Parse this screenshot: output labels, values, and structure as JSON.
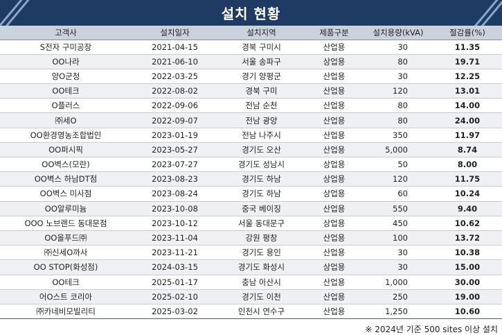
{
  "title": "설치 현황",
  "table": {
    "headers": [
      "고객사",
      "설치일자",
      "설치지역",
      "제품구분",
      "설치용량(kVA)",
      "절감률(%)"
    ],
    "rows": [
      [
        "S전자 구미공장",
        "2021-04-15",
        "경북 구미시",
        "산업용",
        "30",
        "11.35"
      ],
      [
        "OO나라",
        "2021-06-10",
        "서울 송파구",
        "상업용",
        "80",
        "19.71"
      ],
      [
        "양O군청",
        "2022-03-25",
        "경기 양평군",
        "산업용",
        "30",
        "12.25"
      ],
      [
        "OO테크",
        "2022-08-02",
        "경북 구미",
        "산업용",
        "120",
        "13.01"
      ],
      [
        "O플러스",
        "2022-09-06",
        "전남 순천",
        "산업용",
        "80",
        "14.00"
      ],
      [
        "㈜세O",
        "2022-09-07",
        "전남 광양",
        "산업용",
        "80",
        "24.00"
      ],
      [
        "OO환경영농조합법인",
        "2023-01-19",
        "전남 나주시",
        "산업용",
        "350",
        "11.97"
      ],
      [
        "OO퍼시픽",
        "2023-05-27",
        "경기도 오산",
        "산업용",
        "5,000",
        "8.74"
      ],
      [
        "OO벽스(모란)",
        "2023-07-27",
        "경기도 성남시",
        "상업용",
        "50",
        "8.00"
      ],
      [
        "OO벽스 하남DT점",
        "2023-08-23",
        "경기도 하남",
        "상업용",
        "120",
        "11.75"
      ],
      [
        "OO벽스 미사점",
        "2023-08-24",
        "경기도 하남",
        "상업용",
        "60",
        "10.24"
      ],
      [
        "OO알루미늄",
        "2023-10-08",
        "중국 베이징",
        "산업용",
        "550",
        "9.40"
      ],
      [
        "OOO 노브랜드 동대문점",
        "2023-10-12",
        "서울 동대문구",
        "상업용",
        "450",
        "10.62"
      ],
      [
        "OO올푸드㈜",
        "2023-11-04",
        "강원 평창",
        "산업용",
        "100",
        "13.72"
      ],
      [
        "㈜신세O까사",
        "2023-11-21",
        "경기도 용인",
        "산업용",
        "30",
        "10.38"
      ],
      [
        "OO STOP(화성점)",
        "2024-03-15",
        "경기도 화성시",
        "상업용",
        "30",
        "15.00"
      ],
      [
        "OO테크",
        "2025-01-17",
        "충남 아산시",
        "산업용",
        "1,000",
        "30.00"
      ],
      [
        "어O스트 코리아",
        "2025-02-10",
        "경기도 이천",
        "산업용",
        "250",
        "19.00"
      ],
      [
        "㈜카네비모빌리티",
        "2025-03-02",
        "인천시 연수구",
        "산업용",
        "1,250",
        "10.60"
      ]
    ]
  },
  "footnote": "※ 2024년 기준 500 sites 이상 설치",
  "colors": {
    "banner": "#1f3a63",
    "header_bg": "#ccd2dc",
    "stripe_row": "#eef0f3"
  }
}
